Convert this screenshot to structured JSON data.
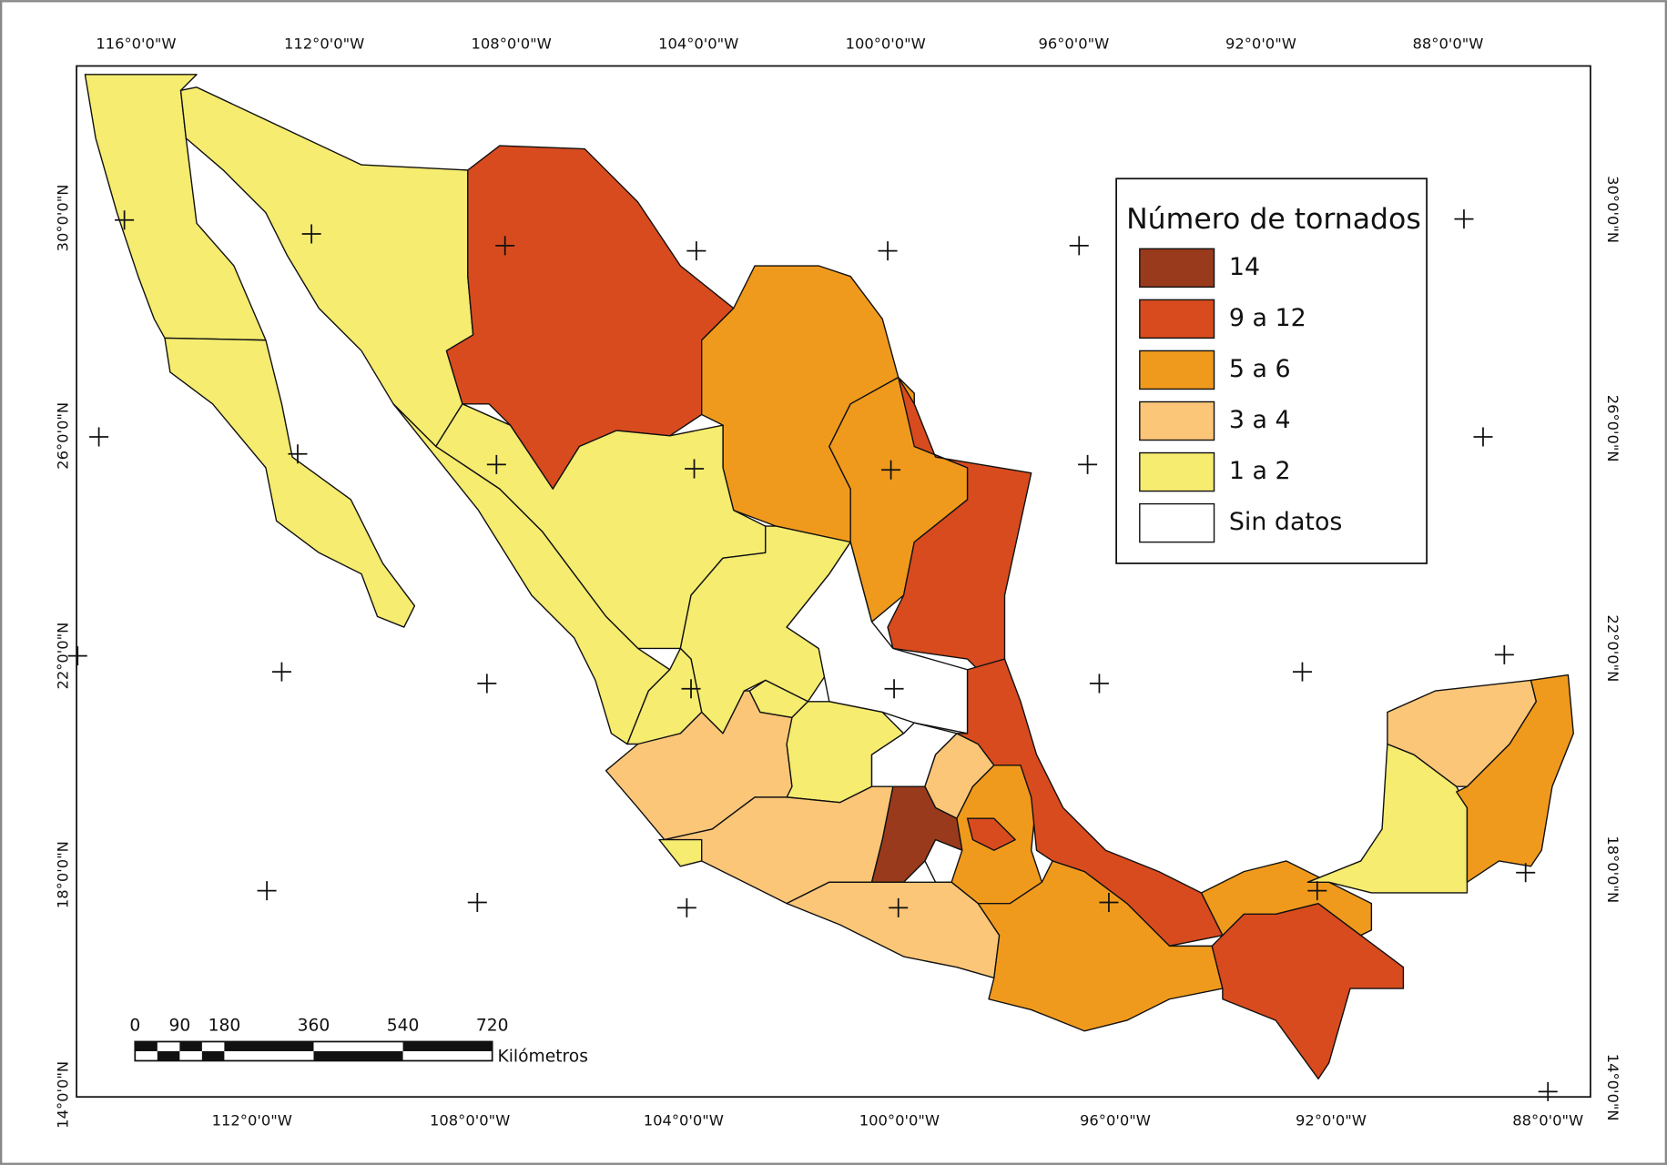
{
  "map": {
    "top_labels": [
      "116°0'0\"W",
      "112°0'0\"W",
      "108°0'0\"W",
      "104°0'0\"W",
      "100°0'0\"W",
      "96°0'0\"W",
      "92°0'0\"W",
      "88°0'0\"W"
    ],
    "bottom_labels": [
      "112°0'0\"W",
      "108°0'0\"W",
      "104°0'0\"W",
      "100°0'0\"W",
      "96°0'0\"W",
      "92°0'0\"W",
      "88°0'0\"W"
    ],
    "left_labels": [
      "30°0'0\"N",
      "26°0'0\"N",
      "22°0'0\"N",
      "18°0'0\"N",
      "14°0'0\"N"
    ],
    "right_labels": [
      "30°0'0\"N",
      "26°0'0\"N",
      "22°0'0\"N",
      "18°0'0\"N",
      "14°0'0\"N"
    ]
  },
  "legend": {
    "title": "Número de tornados",
    "items": [
      {
        "label": "14",
        "color": "#9a3a1c"
      },
      {
        "label": "9 a 12",
        "color": "#d84b1e"
      },
      {
        "label": "5 a 6",
        "color": "#f09a1d"
      },
      {
        "label": "3 a 4",
        "color": "#fbc678"
      },
      {
        "label": "1 a 2",
        "color": "#f5ec70"
      },
      {
        "label": "Sin datos",
        "color": "#ffffff"
      }
    ]
  },
  "scale_bar": {
    "ticks": [
      0,
      90,
      180,
      360,
      540,
      720
    ],
    "unit": "Kilómetros"
  }
}
